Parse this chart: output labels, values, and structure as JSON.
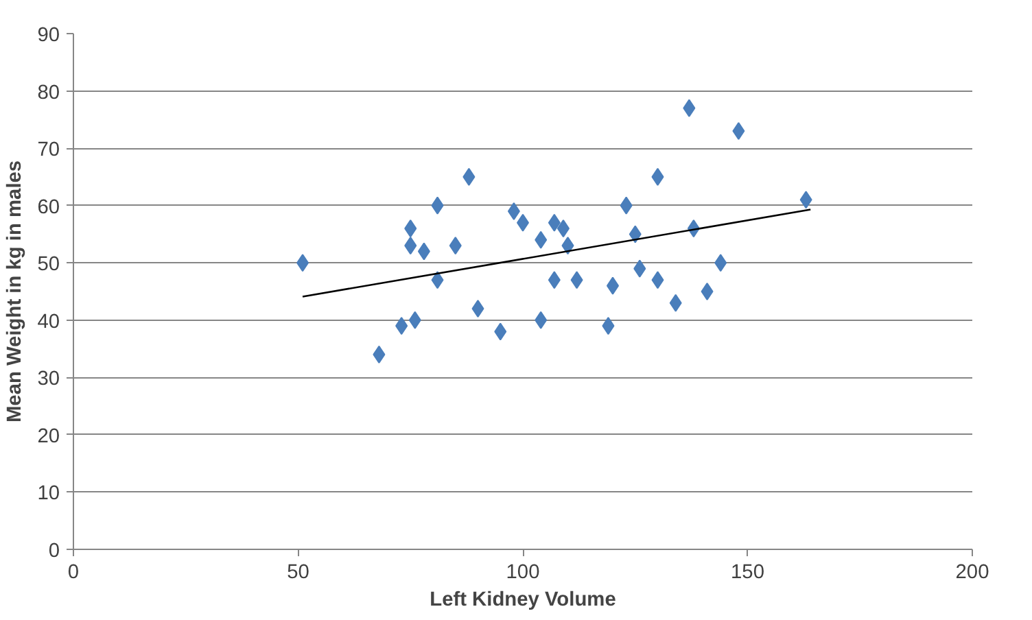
{
  "chart_data": {
    "type": "scatter",
    "xlabel": "Left Kidney Volume",
    "ylabel": "Mean Weight in kg in males",
    "xlim": [
      0,
      200
    ],
    "xticks": [
      0,
      50,
      100,
      150,
      200
    ],
    "ylim": [
      0,
      90
    ],
    "yticks": [
      0,
      10,
      20,
      30,
      40,
      50,
      60,
      70,
      80,
      90
    ],
    "grid": "y",
    "marker": "diamond",
    "series": [
      {
        "color": "#4a7ebb",
        "x": [
          51,
          68,
          73,
          75,
          75,
          76,
          78,
          81,
          81,
          85,
          88,
          90,
          95,
          98,
          100,
          104,
          104,
          107,
          107,
          109,
          110,
          112,
          119,
          120,
          123,
          125,
          126,
          130,
          130,
          134,
          137,
          138,
          141,
          144,
          148,
          163
        ],
        "values": [
          50,
          34,
          39,
          56,
          53,
          40,
          52,
          60,
          47,
          53,
          65,
          42,
          38,
          59,
          57,
          54,
          40,
          57,
          47,
          56,
          53,
          47,
          39,
          46,
          60,
          55,
          49,
          47,
          65,
          43,
          77,
          56,
          45,
          50,
          73,
          61
        ]
      },
      {
        "type": "line",
        "color": "#000000",
        "x": [
          51,
          164
        ],
        "values": [
          44.1,
          59.3
        ],
        "marker": "none"
      }
    ]
  }
}
